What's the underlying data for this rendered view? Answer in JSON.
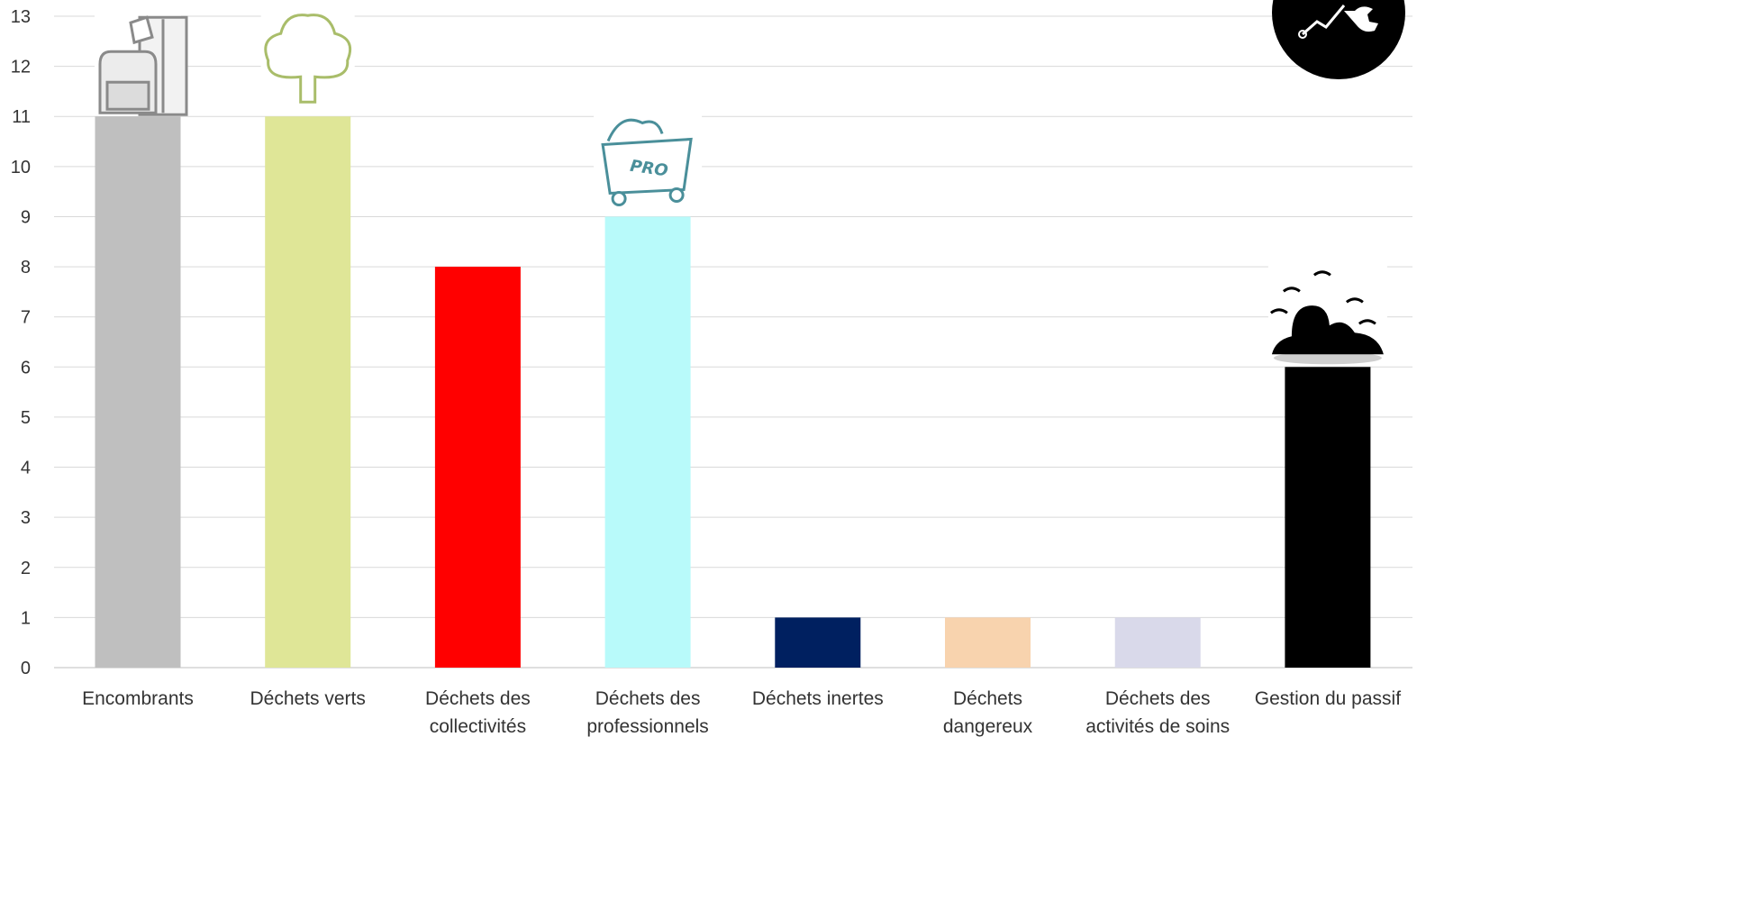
{
  "chart_data": {
    "type": "bar",
    "title": "",
    "xlabel": "",
    "ylabel": "",
    "ylim": [
      0,
      13
    ],
    "yticks": [
      0,
      1,
      2,
      3,
      4,
      5,
      6,
      7,
      8,
      9,
      10,
      11,
      12,
      13
    ],
    "grid": true,
    "legend": "none",
    "categories": [
      [
        "Encombrants"
      ],
      [
        "Déchets verts"
      ],
      [
        "Déchets des",
        "collectivités"
      ],
      [
        "Déchets des",
        "professionnels"
      ],
      [
        "Déchets inertes"
      ],
      [
        "Déchets",
        "dangereux"
      ],
      [
        "Déchets des",
        "activités de soins"
      ],
      [
        "Gestion du passif"
      ]
    ],
    "values": [
      11,
      11,
      8,
      9,
      1,
      1,
      1,
      6
    ],
    "colors": [
      "#bfbfbf",
      "#dfe697",
      "#ff0000",
      "#b8fafa",
      "#002060",
      "#f8d3ae",
      "#d9d9ea",
      "#000000"
    ],
    "icons": [
      "furniture-icon",
      "tree-icon",
      "none",
      "pro-dumpster-icon",
      "none",
      "none",
      "none",
      "landfill-icon"
    ],
    "corner_icon": "tools-badge-icon"
  }
}
